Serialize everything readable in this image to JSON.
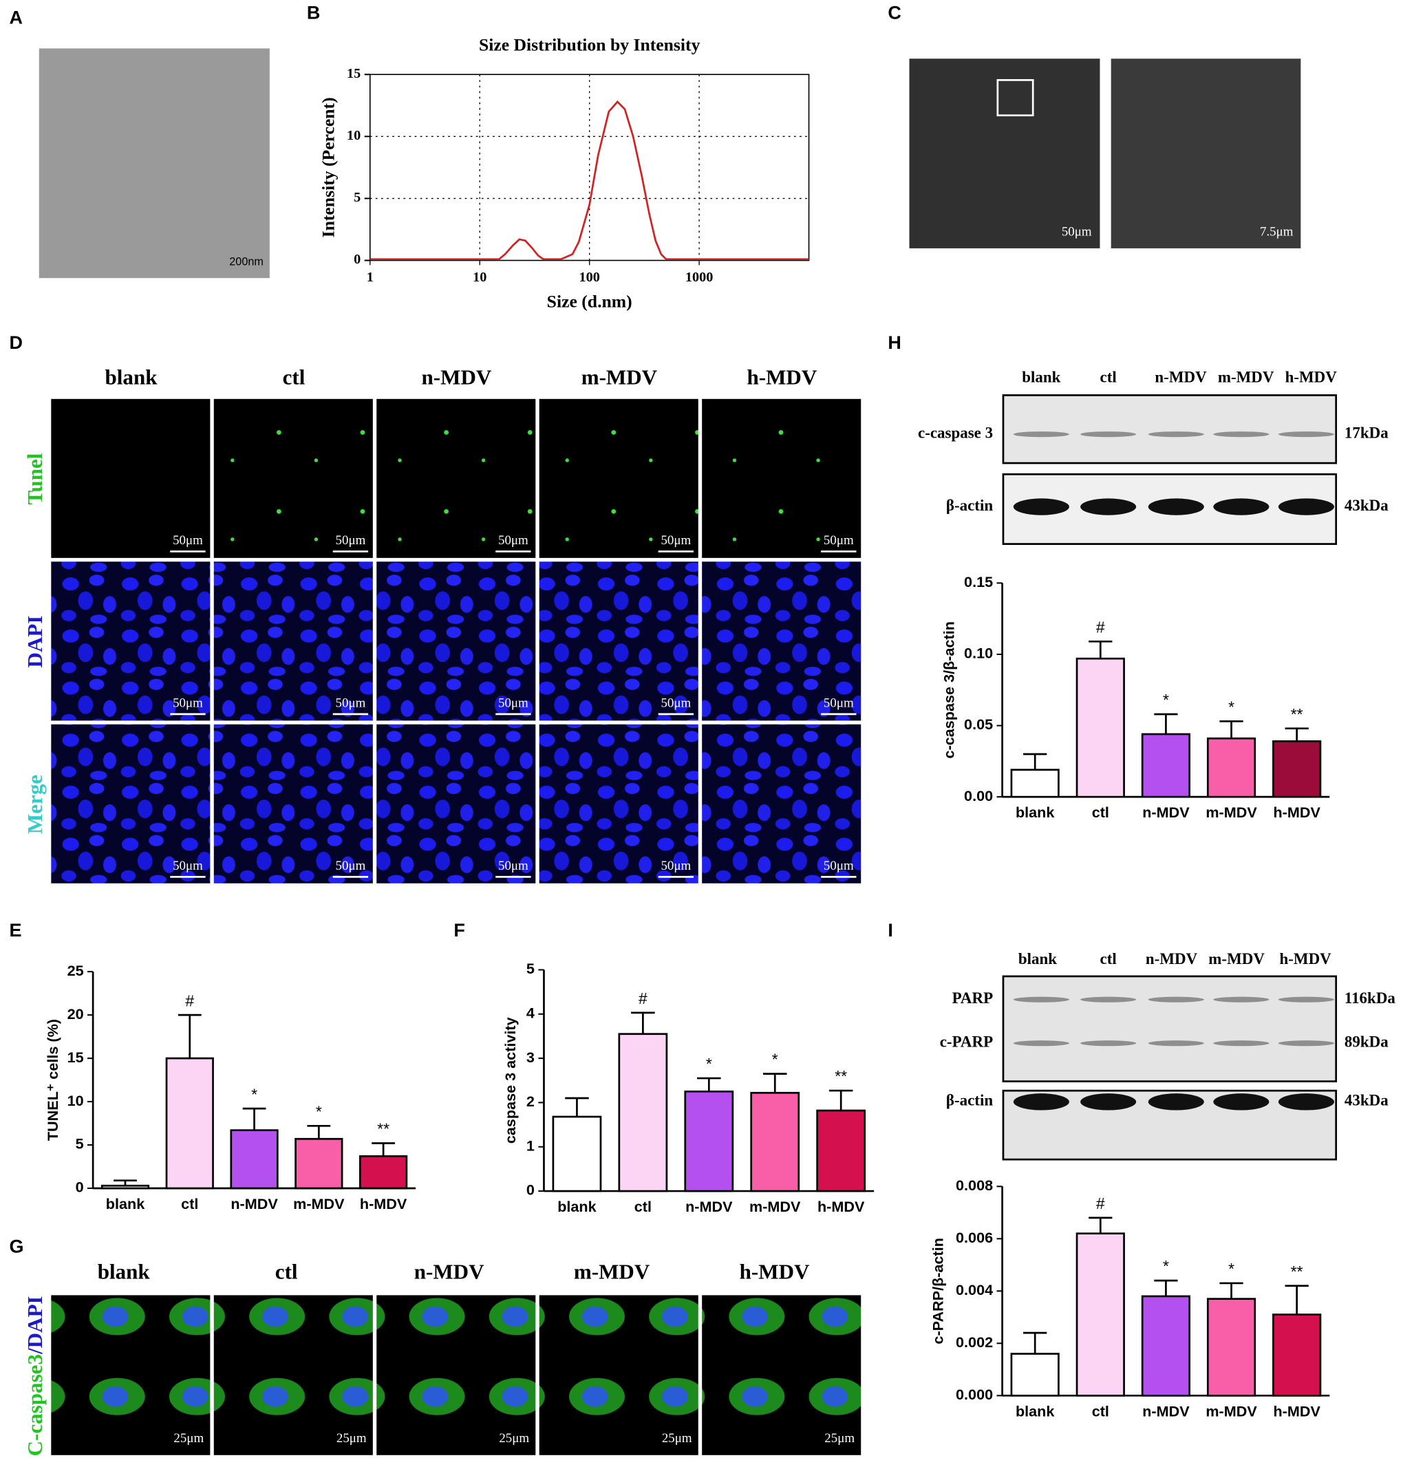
{
  "panels": {
    "labels": [
      "A",
      "B",
      "C",
      "D",
      "E",
      "F",
      "G",
      "H",
      "I"
    ]
  },
  "panel_A": {
    "scale_bar": "200nm"
  },
  "panel_C": {
    "scale_bars": [
      "50μm",
      "7.5μm"
    ]
  },
  "panel_D": {
    "columns": [
      "blank",
      "ctl",
      "n-MDV",
      "m-MDV",
      "h-MDV"
    ],
    "rows": [
      "Tunel",
      "DAPI",
      "Merge"
    ],
    "scale_bar": "50μm"
  },
  "panel_G": {
    "columns": [
      "blank",
      "ctl",
      "n-MDV",
      "m-MDV",
      "h-MDV"
    ],
    "row_label": [
      "C-caspase3",
      "/DAPI"
    ],
    "scale_bar": "25μm"
  },
  "panel_H_blot": {
    "lanes": [
      "blank",
      "ctl",
      "n-MDV",
      "m-MDV",
      "h-MDV"
    ],
    "bands": [
      {
        "label": "c-caspase 3",
        "size": "17kDa"
      },
      {
        "label": "β-actin",
        "size": "43kDa"
      }
    ]
  },
  "panel_I_blot": {
    "lanes": [
      "blank",
      "ctl",
      "n-MDV",
      "m-MDV",
      "h-MDV"
    ],
    "bands": [
      {
        "label": "PARP",
        "size": "116kDa"
      },
      {
        "label": "c-PARP",
        "size": "89kDa"
      },
      {
        "label": "β-actin",
        "size": "43kDa"
      }
    ]
  },
  "chart_data": [
    {
      "type": "line",
      "title": "Size Distribution by Intensity",
      "xlabel": "Size (d.nm)",
      "ylabel": "Intensity (Percent)",
      "xscale": "log",
      "grid": true,
      "color": "#d42020",
      "x": [
        1,
        15,
        17,
        20,
        23,
        26,
        30,
        34,
        38,
        45,
        55,
        70,
        80,
        100,
        120,
        150,
        180,
        210,
        250,
        300,
        350,
        400,
        450,
        500,
        1000,
        10000
      ],
      "values": [
        0.1,
        0.1,
        0.5,
        1.2,
        1.7,
        1.6,
        1.0,
        0.4,
        0.1,
        0.1,
        0.1,
        0.5,
        1.5,
        4.5,
        8.5,
        12,
        12.8,
        12.2,
        10,
        6.8,
        3.8,
        1.6,
        0.5,
        0.1,
        0.1,
        0.1
      ],
      "xlim": [
        1,
        10000
      ],
      "xticks": [
        1,
        10,
        100,
        1000
      ],
      "ylim": [
        0,
        15
      ],
      "yticks": [
        0,
        5,
        10,
        15
      ]
    },
    {
      "type": "bar",
      "ylabel": "TUNEL⁺ cells (%)",
      "categories": [
        "blank",
        "ctl",
        "n-MDV",
        "m-MDV",
        "h-MDV"
      ],
      "values": [
        0.3,
        15,
        6.7,
        5.7,
        3.7
      ],
      "errors": [
        0.6,
        5,
        2.5,
        1.5,
        1.5
      ],
      "annotations": [
        null,
        "#",
        "*",
        "*",
        "**"
      ],
      "colors": [
        "#ffffff",
        "#fcd5f5",
        "#b44ff0",
        "#f95fa8",
        "#d4104f"
      ],
      "ylim": [
        0,
        25
      ],
      "yticks": [
        0,
        5,
        10,
        15,
        20,
        25
      ]
    },
    {
      "type": "bar",
      "ylabel": "caspase 3 activity",
      "categories": [
        "blank",
        "ctl",
        "n-MDV",
        "m-MDV",
        "h-MDV"
      ],
      "values": [
        1.68,
        3.55,
        2.25,
        2.22,
        1.82
      ],
      "errors": [
        0.42,
        0.48,
        0.3,
        0.43,
        0.45
      ],
      "annotations": [
        null,
        "#",
        "*",
        "*",
        "**"
      ],
      "colors": [
        "#ffffff",
        "#fcd5f5",
        "#b44ff0",
        "#f95fa8",
        "#d4104f"
      ],
      "ylim": [
        0,
        5
      ],
      "yticks": [
        0,
        1,
        2,
        3,
        4,
        5
      ]
    },
    {
      "type": "bar",
      "ylabel": "c-caspase 3/β-actin",
      "categories": [
        "blank",
        "ctl",
        "n-MDV",
        "m-MDV",
        "h-MDV"
      ],
      "values": [
        0.019,
        0.097,
        0.044,
        0.041,
        0.039
      ],
      "errors": [
        0.011,
        0.012,
        0.014,
        0.012,
        0.009
      ],
      "annotations": [
        null,
        "#",
        "*",
        "*",
        "**"
      ],
      "colors": [
        "#ffffff",
        "#fcd5f5",
        "#b44ff0",
        "#f95fa8",
        "#9c0c3a"
      ],
      "ylim": [
        0,
        0.15
      ],
      "yticks": [
        {
          "value": 0,
          "label": "0.00"
        },
        0.05,
        {
          "value": 0.1,
          "label": "0.10"
        },
        0.15
      ]
    },
    {
      "type": "bar",
      "ylabel": "c-PARP/β-actin",
      "categories": [
        "blank",
        "ctl",
        "n-MDV",
        "m-MDV",
        "h-MDV"
      ],
      "values": [
        0.0016,
        0.0062,
        0.0038,
        0.0037,
        0.0031
      ],
      "errors": [
        0.0008,
        0.0006,
        0.0006,
        0.0006,
        0.0011
      ],
      "annotations": [
        null,
        "#",
        "*",
        "*",
        "**"
      ],
      "colors": [
        "#ffffff",
        "#fcd5f5",
        "#b44ff0",
        "#f95fa8",
        "#d4104f"
      ],
      "ylim": [
        0,
        0.008
      ],
      "yticks": [
        {
          "value": 0,
          "label": "0.000"
        },
        0.002,
        0.004,
        0.006,
        0.008
      ]
    }
  ]
}
